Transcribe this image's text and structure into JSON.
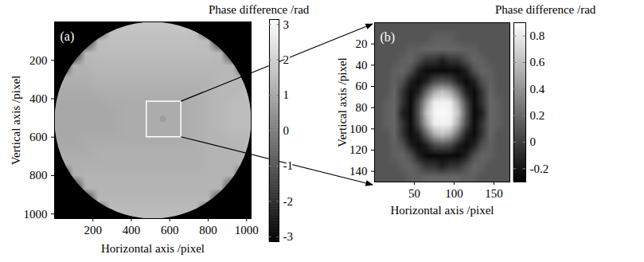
{
  "chart_data": [
    {
      "type": "heatmap",
      "panel_label": "(a)",
      "x_label": "Horizontal axis /pixel",
      "y_label": "Vertical axis /pixel",
      "xlim": [
        0,
        1024
      ],
      "ylim": [
        1024,
        0
      ],
      "xticks": [
        200,
        400,
        600,
        800,
        1000
      ],
      "yticks": [
        200,
        400,
        600,
        800,
        1000
      ],
      "cells": [
        [
          null,
          null,
          null,
          null,
          1.6,
          1.7,
          1.7,
          1.7,
          1.7,
          1.7,
          1.7,
          1.6,
          null,
          null,
          null,
          null
        ],
        [
          null,
          null,
          null,
          1.5,
          1.6,
          1.6,
          1.6,
          1.6,
          1.6,
          1.6,
          1.6,
          1.6,
          1.5,
          null,
          null,
          null
        ],
        [
          null,
          null,
          1.4,
          1.5,
          1.5,
          1.5,
          1.5,
          1.5,
          1.5,
          1.5,
          1.5,
          1.5,
          1.5,
          1.4,
          null,
          null
        ],
        [
          null,
          1.3,
          1.3,
          1.4,
          1.4,
          1.4,
          1.4,
          1.4,
          1.4,
          1.4,
          1.4,
          1.4,
          1.4,
          1.4,
          1.4,
          null
        ],
        [
          1.2,
          1.2,
          1.2,
          1.3,
          1.3,
          1.3,
          1.3,
          1.3,
          1.3,
          1.3,
          1.3,
          1.3,
          1.3,
          1.4,
          1.4,
          1.4
        ],
        [
          1.1,
          1.1,
          1.1,
          1.2,
          1.2,
          1.2,
          1.2,
          1.2,
          1.2,
          1.2,
          1.2,
          1.2,
          1.3,
          1.4,
          1.4,
          1.5
        ],
        [
          1.0,
          1.0,
          1.0,
          1.0,
          1.1,
          1.1,
          1.1,
          1.1,
          1.1,
          1.1,
          1.1,
          1.2,
          1.3,
          1.4,
          1.5,
          1.5
        ],
        [
          1.0,
          1.0,
          1.0,
          1.0,
          1.0,
          1.1,
          1.1,
          1.1,
          1.1,
          1.1,
          1.1,
          1.2,
          1.3,
          1.4,
          1.5,
          1.5
        ],
        [
          1.0,
          1.0,
          1.0,
          1.0,
          1.0,
          1.1,
          1.1,
          1.1,
          1.1,
          1.1,
          1.1,
          1.2,
          1.3,
          1.4,
          1.5,
          1.5
        ],
        [
          1.0,
          1.0,
          1.1,
          1.1,
          1.1,
          1.1,
          1.1,
          1.1,
          1.1,
          1.1,
          1.1,
          1.2,
          1.3,
          1.3,
          1.4,
          1.4
        ],
        [
          1.1,
          1.1,
          1.1,
          1.2,
          1.2,
          1.2,
          1.2,
          1.2,
          1.2,
          1.2,
          1.2,
          1.2,
          1.3,
          1.3,
          1.3,
          1.3
        ],
        [
          1.2,
          1.2,
          1.2,
          1.2,
          1.2,
          1.2,
          1.2,
          1.2,
          1.2,
          1.2,
          1.2,
          1.2,
          1.3,
          1.3,
          1.3,
          1.3
        ],
        [
          null,
          1.2,
          1.3,
          1.3,
          1.3,
          1.3,
          1.3,
          1.3,
          1.3,
          1.3,
          1.3,
          1.3,
          1.3,
          1.3,
          1.3,
          null
        ],
        [
          null,
          null,
          1.3,
          1.3,
          1.3,
          1.3,
          1.3,
          1.3,
          1.3,
          1.3,
          1.3,
          1.3,
          1.3,
          1.3,
          null,
          null
        ],
        [
          null,
          null,
          null,
          1.4,
          1.4,
          1.4,
          1.4,
          1.4,
          1.4,
          1.4,
          1.4,
          1.4,
          1.4,
          null,
          null,
          null
        ],
        [
          null,
          null,
          null,
          null,
          1.5,
          1.5,
          1.5,
          1.5,
          1.5,
          1.5,
          1.5,
          1.5,
          null,
          null,
          null,
          null
        ]
      ],
      "aperture": {
        "center": [
          512,
          512
        ],
        "radius": 512
      },
      "spot": {
        "x": 565,
        "y": 505,
        "value": 0.7
      },
      "inset_box": {
        "x": [
          480,
          660
        ],
        "y": [
          415,
          600
        ]
      },
      "colorbar": {
        "title": "Phase difference /rad",
        "range": [
          -3.14,
          3.14
        ],
        "ticks": [
          -3,
          -2,
          -1,
          0,
          1,
          2,
          3
        ]
      }
    },
    {
      "type": "heatmap",
      "panel_label": "(b)",
      "x_label": "Horizontal axis /pixel",
      "y_label": "Vertical axis /pixel",
      "xlim": [
        0,
        170
      ],
      "ylim": [
        150,
        0
      ],
      "xticks": [
        50,
        100,
        150
      ],
      "yticks": [
        20,
        40,
        60,
        80,
        100,
        120,
        140
      ],
      "cells": [
        [
          0.1,
          0.1,
          0.1,
          0.1,
          0.1,
          0.1,
          0.1,
          0.1,
          0.1,
          0.1,
          0.1,
          0.1,
          0.1,
          0.1,
          0.1,
          0.1,
          0.1
        ],
        [
          0.1,
          0.1,
          0.1,
          0.1,
          0.1,
          0.1,
          0.1,
          0.15,
          0.15,
          0.15,
          0.1,
          0.1,
          0.1,
          0.1,
          0.1,
          0.1,
          0.1
        ],
        [
          0.1,
          0.1,
          0.1,
          0.1,
          0.15,
          0.15,
          0.18,
          0.18,
          0.18,
          0.18,
          0.18,
          0.15,
          0.15,
          0.1,
          0.1,
          0.1,
          0.1
        ],
        [
          0.1,
          0.1,
          0.1,
          0.15,
          0.18,
          0.08,
          -0.05,
          -0.05,
          -0.15,
          -0.05,
          -0.05,
          0.08,
          0.18,
          0.15,
          0.1,
          0.1,
          0.1
        ],
        [
          0.1,
          0.1,
          0.15,
          0.18,
          0.08,
          -0.15,
          -0.25,
          -0.25,
          -0.25,
          -0.25,
          -0.25,
          -0.15,
          0.08,
          0.18,
          0.15,
          0.1,
          0.1
        ],
        [
          0.1,
          0.1,
          0.15,
          0.08,
          -0.15,
          -0.25,
          -0.15,
          0.05,
          0.1,
          0.05,
          -0.15,
          -0.25,
          -0.15,
          0.08,
          0.15,
          0.1,
          0.1
        ],
        [
          0.1,
          0.1,
          0.18,
          -0.05,
          -0.25,
          -0.15,
          0.2,
          0.5,
          0.62,
          0.5,
          0.2,
          -0.15,
          -0.25,
          -0.05,
          0.18,
          0.1,
          0.1
        ],
        [
          0.1,
          0.15,
          0.18,
          -0.05,
          -0.25,
          0.05,
          0.5,
          0.82,
          0.85,
          0.82,
          0.5,
          0.05,
          -0.25,
          -0.05,
          0.18,
          0.15,
          0.1
        ],
        [
          0.1,
          0.15,
          0.18,
          -0.15,
          -0.25,
          0.1,
          0.62,
          0.85,
          0.88,
          0.85,
          0.62,
          0.1,
          -0.25,
          -0.15,
          0.18,
          0.15,
          0.1
        ],
        [
          0.1,
          0.15,
          0.18,
          -0.05,
          -0.25,
          0.05,
          0.5,
          0.82,
          0.85,
          0.82,
          0.5,
          0.05,
          -0.25,
          -0.05,
          0.18,
          0.15,
          0.1
        ],
        [
          0.1,
          0.1,
          0.18,
          -0.05,
          -0.25,
          -0.15,
          0.2,
          0.5,
          0.62,
          0.5,
          0.2,
          -0.15,
          -0.25,
          -0.05,
          0.18,
          0.1,
          0.1
        ],
        [
          0.1,
          0.1,
          0.15,
          0.08,
          -0.15,
          -0.25,
          -0.15,
          0.05,
          0.1,
          0.05,
          -0.15,
          -0.25,
          -0.15,
          0.08,
          0.15,
          0.1,
          0.1
        ],
        [
          0.1,
          0.1,
          0.15,
          0.18,
          0.08,
          -0.15,
          -0.25,
          -0.25,
          -0.25,
          -0.25,
          -0.25,
          -0.15,
          0.08,
          0.18,
          0.15,
          0.1,
          0.1
        ],
        [
          0.1,
          0.1,
          0.1,
          0.15,
          0.18,
          0.08,
          -0.05,
          -0.05,
          -0.15,
          -0.05,
          -0.05,
          0.08,
          0.18,
          0.15,
          0.1,
          0.1,
          0.1
        ],
        [
          0.1,
          0.1,
          0.1,
          0.1,
          0.15,
          0.15,
          0.18,
          0.18,
          0.18,
          0.18,
          0.18,
          0.15,
          0.15,
          0.1,
          0.1,
          0.1,
          0.1
        ]
      ],
      "colorbar": {
        "title": "Phase difference /rad",
        "range": [
          -0.3,
          0.9
        ],
        "ticks": [
          -0.2,
          0,
          0.2,
          0.4,
          0.6,
          0.8
        ]
      }
    }
  ]
}
